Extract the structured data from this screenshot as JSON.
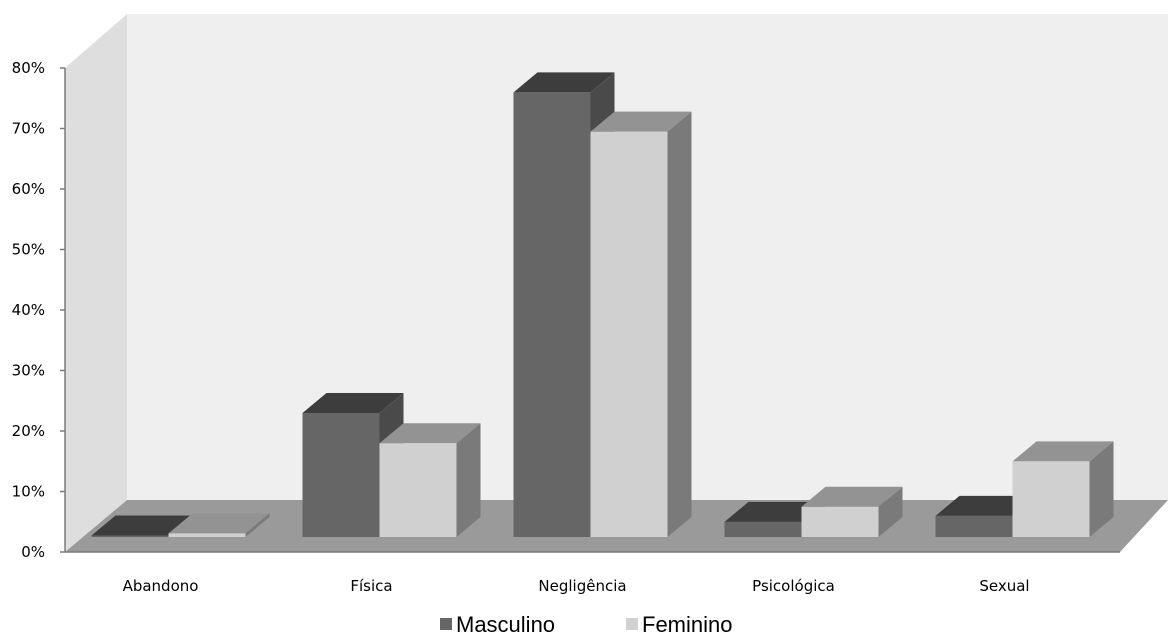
{
  "chart_data": {
    "type": "bar",
    "title": "",
    "xlabel": "",
    "ylabel": "",
    "categories": [
      "Abandono",
      "Física",
      "Negligência",
      "Psicológica",
      "Sexual"
    ],
    "series": [
      {
        "name": "Masculino",
        "values": [
          0,
          20.5,
          73.5,
          2.5,
          3.5
        ]
      },
      {
        "name": "Feminino",
        "values": [
          0.6,
          15.5,
          67,
          5,
          12.5
        ]
      }
    ],
    "ylim": [
      0,
      80
    ],
    "yticks": [
      "0%",
      "10%",
      "20%",
      "30%",
      "40%",
      "50%",
      "60%",
      "70%",
      "80%"
    ],
    "grid": false,
    "legend_position": "bottom",
    "style": "3d-column",
    "colors": {
      "Masculino": "#666666",
      "Feminino": "#d0d0d0"
    }
  }
}
